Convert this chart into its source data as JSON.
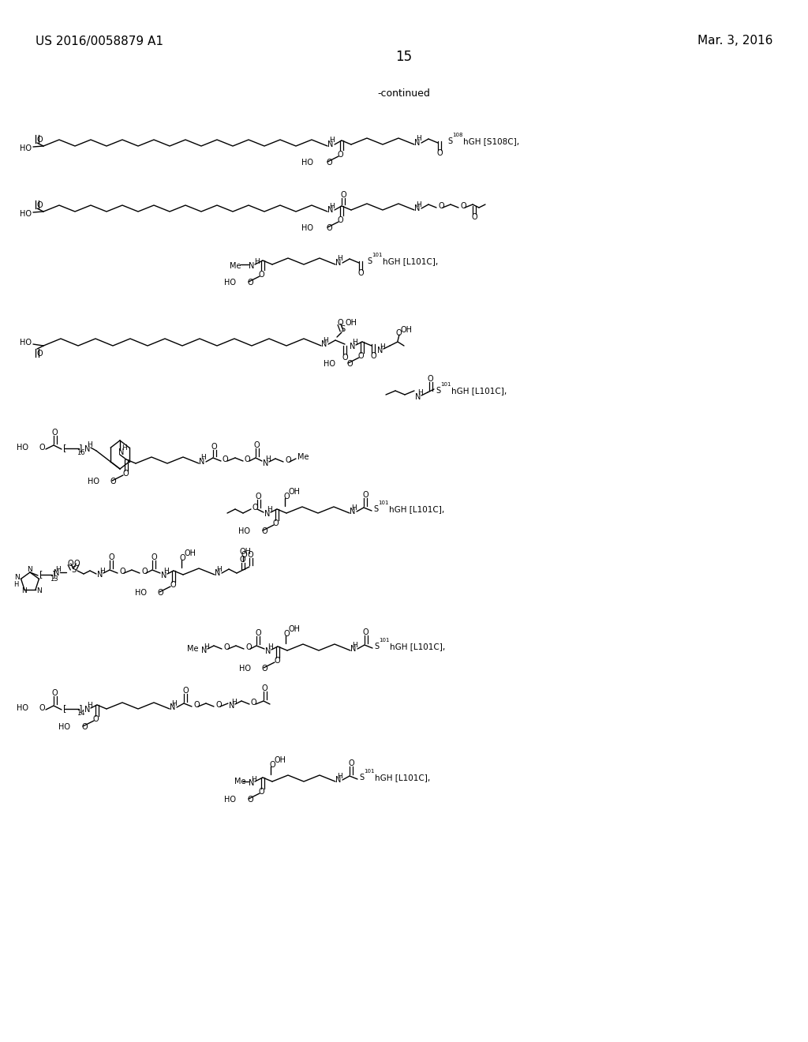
{
  "page_width": 10.24,
  "page_height": 13.2,
  "bg_color": "#ffffff",
  "header_left": "US 2016/0058879 A1",
  "header_right": "Mar. 3, 2016",
  "page_number": "15",
  "continued_text": "-continued"
}
